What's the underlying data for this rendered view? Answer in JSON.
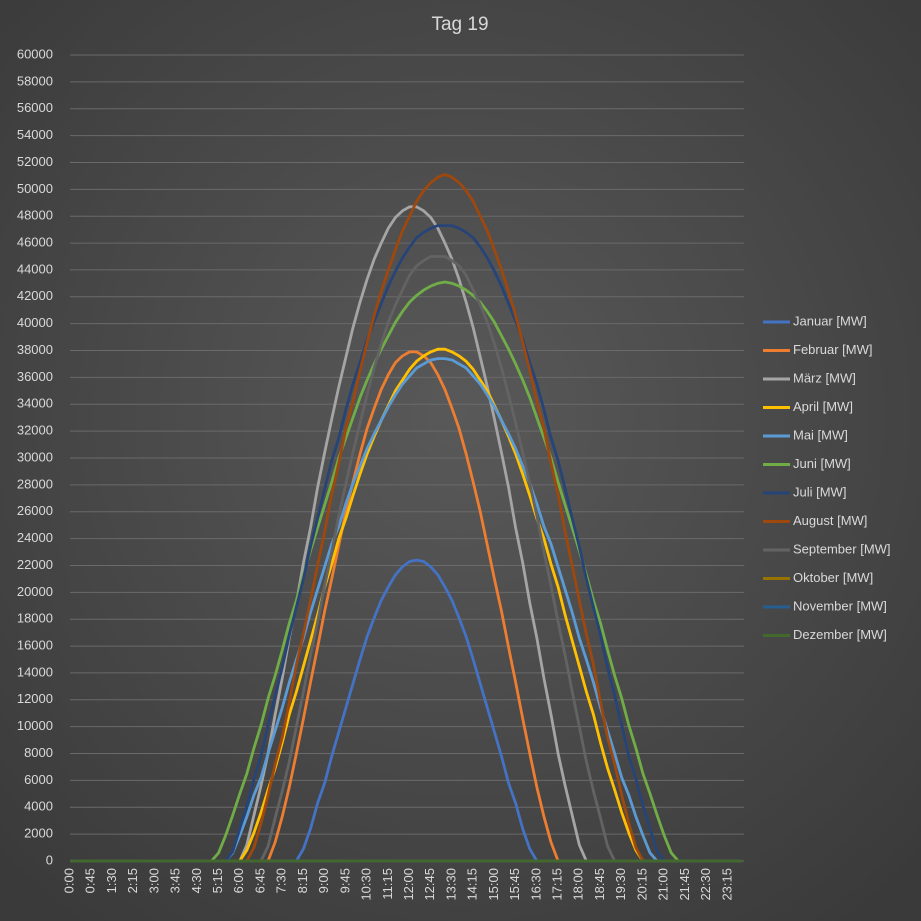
{
  "chart_data": {
    "type": "line",
    "title": "Tag 19",
    "categories": [
      "0:00",
      null,
      null,
      "0:45",
      null,
      null,
      "1:30",
      null,
      null,
      "2:15",
      null,
      null,
      "3:00",
      null,
      null,
      "3:45",
      null,
      null,
      "4:30",
      null,
      null,
      "5:15",
      null,
      null,
      "6:00",
      null,
      null,
      "6:45",
      null,
      null,
      "7:30",
      null,
      null,
      "8:15",
      null,
      null,
      "9:00",
      null,
      null,
      "9:45",
      null,
      null,
      "10:30",
      null,
      null,
      "11:15",
      null,
      null,
      "12:00",
      null,
      null,
      "12:45",
      null,
      null,
      "13:30",
      null,
      null,
      "14:15",
      null,
      null,
      "15:00",
      null,
      null,
      "15:45",
      null,
      null,
      "16:30",
      null,
      null,
      "17:15",
      null,
      null,
      "18:00",
      null,
      null,
      "18:45",
      null,
      null,
      "19:30",
      null,
      null,
      "20:15",
      null,
      null,
      "21:00",
      null,
      null,
      "21:45",
      null,
      null,
      "22:30",
      null,
      null,
      "23:15",
      null,
      null
    ],
    "ylim": [
      0,
      60000
    ],
    "yticks": [
      0,
      2000,
      4000,
      6000,
      8000,
      10000,
      12000,
      14000,
      16000,
      18000,
      20000,
      22000,
      24000,
      26000,
      28000,
      30000,
      32000,
      34000,
      36000,
      38000,
      40000,
      42000,
      44000,
      46000,
      48000,
      50000,
      52000,
      54000,
      56000,
      58000,
      60000
    ],
    "grid": true,
    "legend": "right",
    "series": [
      {
        "name": "Januar [MW]",
        "color": "#4472c4",
        "values": [
          0,
          0,
          0,
          0,
          0,
          0,
          0,
          0,
          0,
          0,
          0,
          0,
          0,
          0,
          0,
          0,
          0,
          0,
          0,
          0,
          0,
          0,
          0,
          0,
          0,
          0,
          0,
          0,
          0,
          0,
          0,
          0,
          0,
          900,
          2400,
          4300,
          5800,
          7800,
          9600,
          11400,
          13200,
          15000,
          16700,
          18100,
          19400,
          20400,
          21300,
          21900,
          22300,
          22400,
          22300,
          21900,
          21300,
          20400,
          19400,
          18100,
          16700,
          15000,
          13200,
          11400,
          9600,
          7800,
          5800,
          4300,
          2400,
          900,
          0,
          0,
          0,
          0,
          0,
          0,
          0,
          0,
          0,
          0,
          0,
          0,
          0,
          0,
          0,
          0,
          0,
          0,
          0,
          0,
          0,
          0,
          0,
          0,
          0,
          0,
          0,
          0,
          0,
          0
        ]
      },
      {
        "name": "Februar [MW]",
        "color": "#ed7d31",
        "values": [
          0,
          0,
          0,
          0,
          0,
          0,
          0,
          0,
          0,
          0,
          0,
          0,
          0,
          0,
          0,
          0,
          0,
          0,
          0,
          0,
          0,
          0,
          0,
          0,
          0,
          0,
          0,
          0,
          0,
          1400,
          3300,
          5500,
          8000,
          10600,
          13300,
          15900,
          18600,
          21000,
          23500,
          26000,
          28200,
          30300,
          32200,
          33700,
          35100,
          36200,
          37100,
          37600,
          37900,
          37900,
          37600,
          37100,
          36200,
          35100,
          33700,
          32200,
          30300,
          28200,
          26000,
          23500,
          21000,
          18600,
          15900,
          13300,
          10600,
          8000,
          5500,
          3300,
          1400,
          0,
          0,
          0,
          0,
          0,
          0,
          0,
          0,
          0,
          0,
          0,
          0,
          0,
          0,
          0,
          0,
          0,
          0,
          0,
          0,
          0,
          0,
          0,
          0,
          0,
          0,
          0
        ]
      },
      {
        "name": "März [MW]",
        "color": "#a5a5a5",
        "values": [
          0,
          0,
          0,
          0,
          0,
          0,
          0,
          0,
          0,
          0,
          0,
          0,
          0,
          0,
          0,
          0,
          0,
          0,
          0,
          0,
          0,
          0,
          0,
          0,
          0,
          1200,
          3400,
          5600,
          8000,
          10900,
          13600,
          16600,
          19200,
          22200,
          24800,
          27800,
          30400,
          32900,
          35300,
          37500,
          39700,
          41600,
          43300,
          44800,
          46000,
          47100,
          47900,
          48400,
          48700,
          48700,
          48400,
          47900,
          47100,
          46000,
          44800,
          43300,
          41600,
          39700,
          37500,
          35300,
          32900,
          30400,
          27800,
          24800,
          22200,
          19200,
          16600,
          13600,
          10900,
          8000,
          5600,
          3400,
          1200,
          0,
          0,
          0,
          0,
          0,
          0,
          0,
          0,
          0,
          0,
          0,
          0,
          0,
          0,
          0,
          0,
          0,
          0,
          0,
          0,
          0,
          0,
          0
        ]
      },
      {
        "name": "April [MW]",
        "color": "#ffc000",
        "values": [
          0,
          0,
          0,
          0,
          0,
          0,
          0,
          0,
          0,
          0,
          0,
          0,
          0,
          0,
          0,
          0,
          0,
          0,
          0,
          0,
          0,
          0,
          0,
          0,
          0,
          800,
          2100,
          3600,
          5300,
          6900,
          8800,
          10900,
          12600,
          14500,
          16400,
          18300,
          20400,
          22100,
          24000,
          25500,
          27200,
          28800,
          30300,
          31600,
          32800,
          33900,
          35000,
          35800,
          36600,
          37200,
          37600,
          37900,
          38100,
          38100,
          37900,
          37600,
          37200,
          36600,
          35800,
          35000,
          33900,
          32800,
          31600,
          30300,
          28800,
          27200,
          25500,
          24000,
          22100,
          20400,
          18300,
          16400,
          14500,
          12600,
          10900,
          8800,
          6900,
          5300,
          3600,
          2100,
          800,
          0,
          0,
          0,
          0,
          0,
          0,
          0,
          0,
          0,
          0,
          0,
          0,
          0,
          0,
          0
        ]
      },
      {
        "name": "Mai [MW]",
        "color": "#5b9bd5",
        "values": [
          0,
          0,
          0,
          0,
          0,
          0,
          0,
          0,
          0,
          0,
          0,
          0,
          0,
          0,
          0,
          0,
          0,
          0,
          0,
          0,
          0,
          0,
          0,
          600,
          1900,
          3300,
          4900,
          6200,
          8000,
          9700,
          11400,
          13300,
          15000,
          16600,
          18500,
          20200,
          21900,
          23600,
          24900,
          26600,
          28100,
          29400,
          30700,
          31800,
          32800,
          33800,
          34700,
          35500,
          36100,
          36700,
          37000,
          37300,
          37400,
          37400,
          37300,
          37000,
          36700,
          36100,
          35500,
          34700,
          33800,
          32800,
          31800,
          30700,
          29400,
          28100,
          26600,
          24900,
          23600,
          21900,
          20200,
          18500,
          16600,
          15000,
          13300,
          11400,
          9700,
          8000,
          6200,
          4900,
          3300,
          1900,
          600,
          0,
          0,
          0,
          0,
          0,
          0,
          0,
          0,
          0,
          0,
          0,
          0,
          0
        ]
      },
      {
        "name": "Juni [MW]",
        "color": "#70ad47",
        "values": [
          0,
          0,
          0,
          0,
          0,
          0,
          0,
          0,
          0,
          0,
          0,
          0,
          0,
          0,
          0,
          0,
          0,
          0,
          0,
          0,
          0,
          600,
          1900,
          3400,
          5000,
          6500,
          8400,
          10100,
          12100,
          13800,
          15700,
          17700,
          19400,
          21300,
          23100,
          24800,
          26500,
          28200,
          30000,
          31500,
          33000,
          34500,
          35800,
          37000,
          38100,
          39100,
          40100,
          40900,
          41600,
          42100,
          42500,
          42800,
          43000,
          43100,
          43000,
          42800,
          42500,
          42100,
          41600,
          40900,
          40100,
          39100,
          38100,
          37000,
          35800,
          34500,
          33000,
          31500,
          30000,
          28200,
          26500,
          24800,
          23100,
          21300,
          19400,
          17700,
          15700,
          13800,
          12100,
          10100,
          8400,
          6500,
          5000,
          3400,
          1900,
          600,
          0,
          0,
          0,
          0,
          0,
          0,
          0,
          0,
          0,
          0
        ]
      },
      {
        "name": "Juli [MW]",
        "color": "#264478",
        "values": [
          0,
          0,
          0,
          0,
          0,
          0,
          0,
          0,
          0,
          0,
          0,
          0,
          0,
          0,
          0,
          0,
          0,
          0,
          0,
          0,
          0,
          0,
          0,
          700,
          2400,
          4100,
          6100,
          7800,
          10100,
          12300,
          14400,
          16800,
          18900,
          21000,
          23400,
          25500,
          27700,
          29800,
          31500,
          33600,
          35500,
          37100,
          38800,
          40200,
          41500,
          42800,
          43900,
          44900,
          45700,
          46400,
          46800,
          47100,
          47300,
          47300,
          47300,
          47100,
          46800,
          46400,
          45700,
          44900,
          43900,
          42800,
          41500,
          40200,
          38800,
          37100,
          35500,
          33600,
          31500,
          29800,
          27700,
          25500,
          23400,
          21000,
          18900,
          16800,
          14400,
          12300,
          10100,
          7800,
          6100,
          4100,
          2400,
          700,
          0,
          0,
          0,
          0,
          0,
          0,
          0,
          0,
          0,
          0,
          0,
          0
        ]
      },
      {
        "name": "August [MW]",
        "color": "#9e480e",
        "values": [
          0,
          0,
          0,
          0,
          0,
          0,
          0,
          0,
          0,
          0,
          0,
          0,
          0,
          0,
          0,
          0,
          0,
          0,
          0,
          0,
          0,
          0,
          0,
          0,
          0,
          0,
          1000,
          2800,
          4900,
          7200,
          9200,
          11800,
          14600,
          16900,
          19400,
          22000,
          24500,
          27300,
          29600,
          32200,
          34200,
          36500,
          38600,
          40600,
          42400,
          44000,
          45500,
          46900,
          48000,
          49100,
          49900,
          50500,
          50900,
          51100,
          50900,
          50500,
          49900,
          49100,
          48000,
          46900,
          45500,
          44000,
          42400,
          40600,
          38600,
          36500,
          34200,
          32200,
          29600,
          27300,
          24500,
          22000,
          19400,
          16900,
          14600,
          11800,
          9200,
          7200,
          4900,
          2800,
          1000,
          0,
          0,
          0,
          0,
          0,
          0,
          0,
          0,
          0,
          0,
          0,
          0,
          0,
          0,
          0
        ]
      },
      {
        "name": "September [MW]",
        "color": "#636363",
        "values": [
          0,
          0,
          0,
          0,
          0,
          0,
          0,
          0,
          0,
          0,
          0,
          0,
          0,
          0,
          0,
          0,
          0,
          0,
          0,
          0,
          0,
          0,
          0,
          0,
          0,
          0,
          0,
          0,
          1100,
          3200,
          5200,
          7400,
          10000,
          12600,
          15300,
          17800,
          20500,
          23000,
          25700,
          28100,
          30400,
          32600,
          34700,
          36700,
          38500,
          40100,
          41400,
          42500,
          43600,
          44300,
          44700,
          45000,
          45000,
          45000,
          44700,
          44300,
          43600,
          42500,
          41400,
          40100,
          38500,
          36700,
          34700,
          32600,
          30400,
          28100,
          25700,
          23000,
          20500,
          17800,
          15300,
          12600,
          10000,
          7400,
          5200,
          3200,
          1100,
          0,
          0,
          0,
          0,
          0,
          0,
          0,
          0,
          0,
          0,
          0,
          0,
          0,
          0,
          0,
          0,
          0,
          0,
          0
        ]
      },
      {
        "name": "Oktober [MW]",
        "color": "#997300",
        "values": [
          0,
          0,
          0,
          0,
          0,
          0,
          0,
          0,
          0,
          0,
          0,
          0,
          0,
          0,
          0,
          0,
          0,
          0,
          0,
          0,
          0,
          0,
          0,
          0,
          0,
          0,
          0,
          0,
          0,
          0,
          0,
          0,
          0,
          0,
          0,
          0,
          0,
          0,
          0,
          0,
          0,
          0,
          0,
          0,
          0,
          0,
          0,
          0,
          0,
          0,
          0,
          0,
          0,
          0,
          0,
          0,
          0,
          0,
          0,
          0,
          0,
          0,
          0,
          0,
          0,
          0,
          0,
          0,
          0,
          0,
          0,
          0,
          0,
          0,
          0,
          0,
          0,
          0,
          0,
          0,
          0,
          0,
          0,
          0,
          0,
          0,
          0,
          0,
          0,
          0,
          0,
          0,
          0,
          0,
          0,
          0
        ]
      },
      {
        "name": "November [MW]",
        "color": "#255e91",
        "values": [
          0,
          0,
          0,
          0,
          0,
          0,
          0,
          0,
          0,
          0,
          0,
          0,
          0,
          0,
          0,
          0,
          0,
          0,
          0,
          0,
          0,
          0,
          0,
          0,
          0,
          0,
          0,
          0,
          0,
          0,
          0,
          0,
          0,
          0,
          0,
          0,
          0,
          0,
          0,
          0,
          0,
          0,
          0,
          0,
          0,
          0,
          0,
          0,
          0,
          0,
          0,
          0,
          0,
          0,
          0,
          0,
          0,
          0,
          0,
          0,
          0,
          0,
          0,
          0,
          0,
          0,
          0,
          0,
          0,
          0,
          0,
          0,
          0,
          0,
          0,
          0,
          0,
          0,
          0,
          0,
          0,
          0,
          0,
          0,
          0,
          0,
          0,
          0,
          0,
          0,
          0,
          0,
          0,
          0,
          0,
          0
        ]
      },
      {
        "name": "Dezember [MW]",
        "color": "#43682b",
        "values": [
          0,
          0,
          0,
          0,
          0,
          0,
          0,
          0,
          0,
          0,
          0,
          0,
          0,
          0,
          0,
          0,
          0,
          0,
          0,
          0,
          0,
          0,
          0,
          0,
          0,
          0,
          0,
          0,
          0,
          0,
          0,
          0,
          0,
          0,
          0,
          0,
          0,
          0,
          0,
          0,
          0,
          0,
          0,
          0,
          0,
          0,
          0,
          0,
          0,
          0,
          0,
          0,
          0,
          0,
          0,
          0,
          0,
          0,
          0,
          0,
          0,
          0,
          0,
          0,
          0,
          0,
          0,
          0,
          0,
          0,
          0,
          0,
          0,
          0,
          0,
          0,
          0,
          0,
          0,
          0,
          0,
          0,
          0,
          0,
          0,
          0,
          0,
          0,
          0,
          0,
          0,
          0,
          0,
          0,
          0,
          0
        ]
      }
    ]
  }
}
